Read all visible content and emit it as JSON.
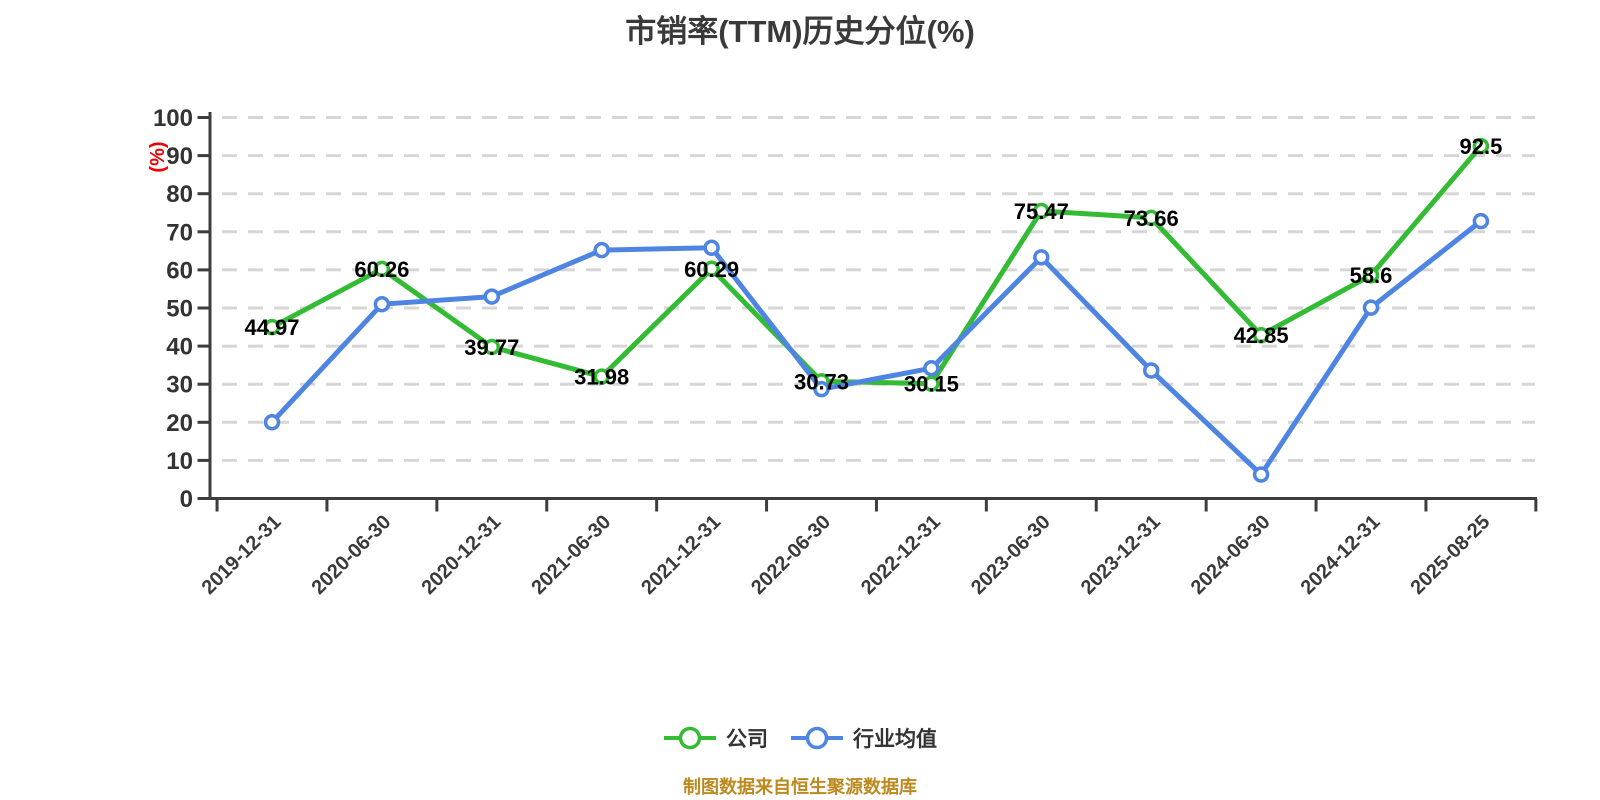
{
  "title": "市销率(TTM)历史分位(%)",
  "y_axis_name": "(%)",
  "footer": "制图数据来自恒生聚源数据库",
  "legend": {
    "company": {
      "label": "公司"
    },
    "industry": {
      "label": "行业均值"
    }
  },
  "colors": {
    "company": "#33bb33",
    "industry": "#4f85e2",
    "grid": "#d6d6d6",
    "axis": "#3d3d3d",
    "tick_label": "#333333",
    "x_label": "#3a3a3a",
    "value_label": "#000000",
    "title": "#3a3a3a",
    "footer": "#bd8a20",
    "y_axis_name": "#ee0000",
    "background": "#ffffff",
    "marker_fill": "#ffffff"
  },
  "chart_data": {
    "type": "line",
    "title": "市销率(TTM)历史分位(%)",
    "ylabel": "(%)",
    "xlabel": "",
    "ylim": [
      0,
      100
    ],
    "yticks": [
      0,
      10,
      20,
      30,
      40,
      50,
      60,
      70,
      80,
      90,
      100
    ],
    "grid": "horizontal-dashed",
    "legend_position": "bottom",
    "categories": [
      "2019-12-31",
      "2020-06-30",
      "2020-12-31",
      "2021-06-30",
      "2021-12-31",
      "2022-06-30",
      "2022-12-31",
      "2023-06-30",
      "2023-12-31",
      "2024-06-30",
      "2024-12-31",
      "2025-08-25"
    ],
    "series": [
      {
        "name": "公司",
        "color_key": "company",
        "show_value_labels": true,
        "values": [
          44.97,
          60.26,
          39.77,
          31.98,
          60.29,
          30.73,
          30.15,
          75.47,
          73.66,
          42.85,
          58.6,
          92.5
        ]
      },
      {
        "name": "行业均值",
        "color_key": "industry",
        "show_value_labels": false,
        "values": [
          20,
          51,
          53,
          65.2,
          65.8,
          28.7,
          34.2,
          63.3,
          33.6,
          6.3,
          50.1,
          72.8
        ]
      }
    ]
  }
}
